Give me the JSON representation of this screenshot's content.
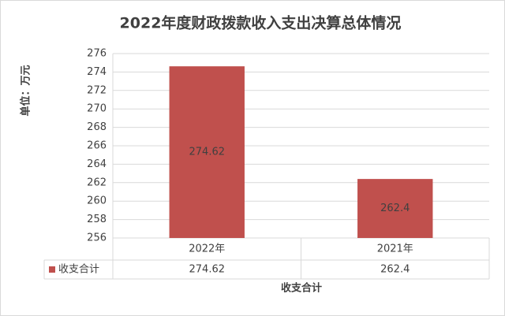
{
  "chart_data": {
    "type": "bar",
    "title": "2022年度财政拨款收入支出决算总体情况",
    "y_label": "单位：万元",
    "x_label": "收支合计",
    "categories": [
      "2022年",
      "2021年"
    ],
    "series": [
      {
        "name": "收支合计",
        "color": "#c0504d",
        "values": [
          274.62,
          262.4
        ]
      }
    ],
    "ylim": [
      256,
      276
    ],
    "yticks": [
      256,
      258,
      260,
      262,
      264,
      266,
      268,
      270,
      272,
      274,
      276
    ],
    "grid": true,
    "data_table": true
  }
}
